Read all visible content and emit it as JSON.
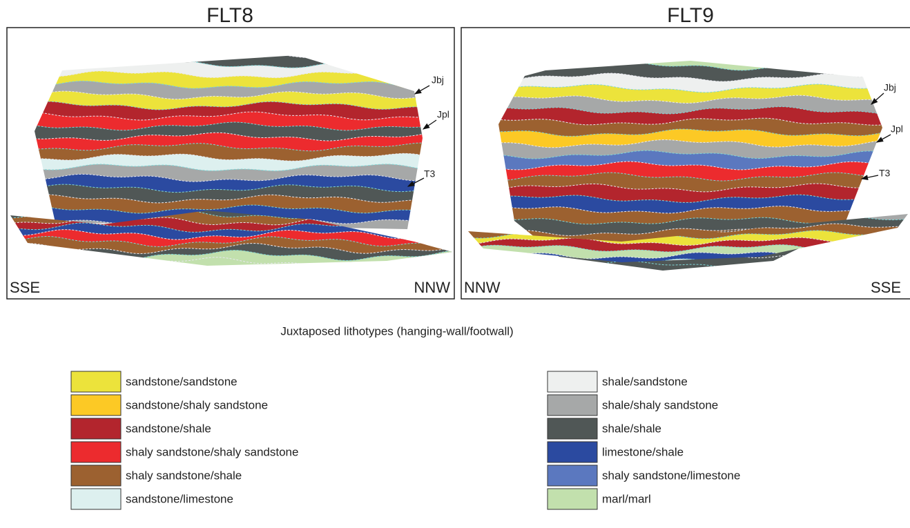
{
  "panels": [
    {
      "title": "FLT8",
      "left_label": "SSE",
      "right_label": "NNW",
      "horizons": [
        "Jbj",
        "Jpl",
        "T3"
      ]
    },
    {
      "title": "FLT9",
      "left_label": "NNW",
      "right_label": "SSE",
      "horizons": [
        "Jbj",
        "Jpl",
        "T3"
      ]
    }
  ],
  "legend": {
    "title": "Juxtaposed lithotypes (hanging-wall/footwall)",
    "items": [
      {
        "label": "sandstone/sandstone",
        "color": "#ece33b"
      },
      {
        "label": "sandstone/shaly sandstone",
        "color": "#fcc925"
      },
      {
        "label": "sandstone/shale",
        "color": "#b3252d"
      },
      {
        "label": "shaly sandstone/shaly sandstone",
        "color": "#ec2b2e"
      },
      {
        "label": "shaly sandstone/shale",
        "color": "#9c6130"
      },
      {
        "label": "sandstone/limestone",
        "color": "#ddf0ef"
      },
      {
        "label": "shale/sandstone",
        "color": "#eef0ef"
      },
      {
        "label": "shale/shaly sandstone",
        "color": "#a6a8a8"
      },
      {
        "label": "shale/shale",
        "color": "#505756"
      },
      {
        "label": "limestone/shale",
        "color": "#2b4aa0"
      },
      {
        "label": "shaly sandstone/limestone",
        "color": "#5b78bf"
      },
      {
        "label": "marl/marl",
        "color": "#c2e0ad"
      }
    ]
  }
}
